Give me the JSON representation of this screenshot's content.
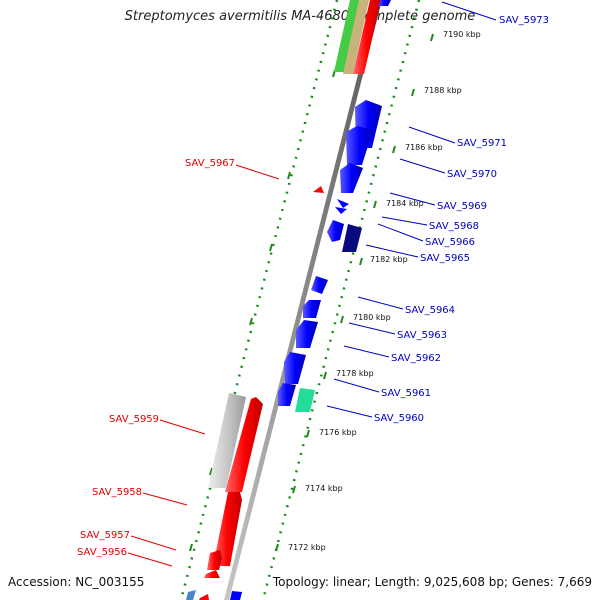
{
  "header": {
    "title": "Streptomyces avermitilis MA-4680, complete genome"
  },
  "footer": {
    "accession": "Accession: NC_003155",
    "summary": "Topology: linear; Length: 9,025,608 bp; Genes: 7,669"
  },
  "ticks": [
    {
      "label": "7190 kbp"
    },
    {
      "label": "7188 kbp"
    },
    {
      "label": "7186 kbp"
    },
    {
      "label": "7184 kbp"
    },
    {
      "label": "7182 kbp"
    },
    {
      "label": "7180 kbp"
    },
    {
      "label": "7178 kbp"
    },
    {
      "label": "7176 kbp"
    },
    {
      "label": "7174 kbp"
    },
    {
      "label": "7172 kbp"
    }
  ],
  "left_labels": [
    {
      "label": "SAV_5967"
    },
    {
      "label": "SAV_5959"
    },
    {
      "label": "SAV_5958"
    },
    {
      "label": "SAV_5957"
    },
    {
      "label": "SAV_5956"
    }
  ],
  "right_labels": [
    {
      "label": "SAV_5973"
    },
    {
      "label": "SAV_5971"
    },
    {
      "label": "SAV_5970"
    },
    {
      "label": "SAV_5969"
    },
    {
      "label": "SAV_5968"
    },
    {
      "label": "SAV_5966"
    },
    {
      "label": "SAV_5965"
    },
    {
      "label": "SAV_5964"
    },
    {
      "label": "SAV_5963"
    },
    {
      "label": "SAV_5962"
    },
    {
      "label": "SAV_5961"
    },
    {
      "label": "SAV_5960"
    }
  ],
  "colors": {
    "forward_strand_gene": "#ff0000",
    "reverse_strand_gene": "#0000ff",
    "left_label": "#e00000",
    "right_label": "#0000c0",
    "scale_dots": "#1a8a1a",
    "backbone": "#888888"
  }
}
